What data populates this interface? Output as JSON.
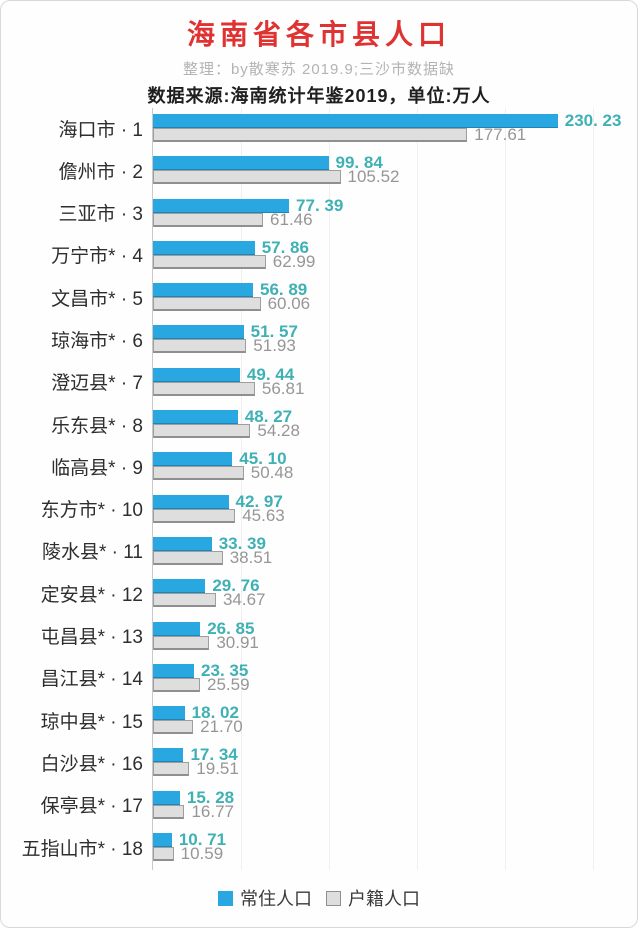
{
  "title": "海南省各市县人口",
  "subtitle1": "整理：by散寒苏 2019.9;三沙市数据缺",
  "subtitle2": "数据来源:海南统计年鉴2019，单位:万人",
  "legend": [
    {
      "label": "常住人口",
      "color": "#29a7e1"
    },
    {
      "label": "户籍人口",
      "color": "#dedede"
    }
  ],
  "colors": {
    "title": "#df3333",
    "bar_resident": "#29a7e1",
    "bar_registered": "#dedede",
    "bar_registered_border": "#9e9e9e",
    "value_resident": "#3fb1b4",
    "value_registered": "#969696",
    "axis": "#c9c9c9",
    "gridline": "#efefef"
  },
  "chart_data": {
    "type": "bar",
    "orientation": "horizontal",
    "title": "海南省各市县人口",
    "unit": "万人",
    "xlim": [
      0,
      270
    ],
    "gridlines": [
      50,
      100,
      150,
      200,
      250
    ],
    "grid": true,
    "legend_position": "bottom",
    "categories": [
      "海口市 · 1",
      "儋州市 · 2",
      "三亚市 · 3",
      "万宁市* · 4",
      "文昌市* · 5",
      "琼海市* · 6",
      "澄迈县* · 7",
      "乐东县* · 8",
      "临高县* · 9",
      "东方市* · 10",
      "陵水县* · 11",
      "定安县* · 12",
      "屯昌县* · 13",
      "昌江县* · 14",
      "琼中县* · 15",
      "白沙县* · 16",
      "保亭县* · 17",
      "五指山市* · 18"
    ],
    "series": [
      {
        "name": "常住人口",
        "values": [
          230.23,
          99.84,
          77.39,
          57.86,
          56.89,
          51.57,
          49.44,
          48.27,
          45.1,
          42.97,
          33.39,
          29.76,
          26.85,
          23.35,
          18.02,
          17.34,
          15.28,
          10.71
        ],
        "display": [
          "230. 23",
          "99. 84",
          "77. 39",
          "57. 86",
          "56. 89",
          "51. 57",
          "49. 44",
          "48. 27",
          "45. 10",
          "42. 97",
          "33. 39",
          "29. 76",
          "26. 85",
          "23. 35",
          "18. 02",
          "17. 34",
          "15. 28",
          "10. 71"
        ]
      },
      {
        "name": "户籍人口",
        "values": [
          177.61,
          105.52,
          61.46,
          62.99,
          60.06,
          51.93,
          56.81,
          54.28,
          50.48,
          45.63,
          38.51,
          34.67,
          30.91,
          25.59,
          21.7,
          19.51,
          16.77,
          10.59
        ],
        "display": [
          "177.61",
          "105.52",
          "61.46",
          "62.99",
          "60.06",
          "51.93",
          "56.81",
          "54.28",
          "50.48",
          "45.63",
          "38.51",
          "34.67",
          "30.91",
          "25.59",
          "21.70",
          "19.51",
          "16.77",
          "10.59"
        ]
      }
    ]
  }
}
